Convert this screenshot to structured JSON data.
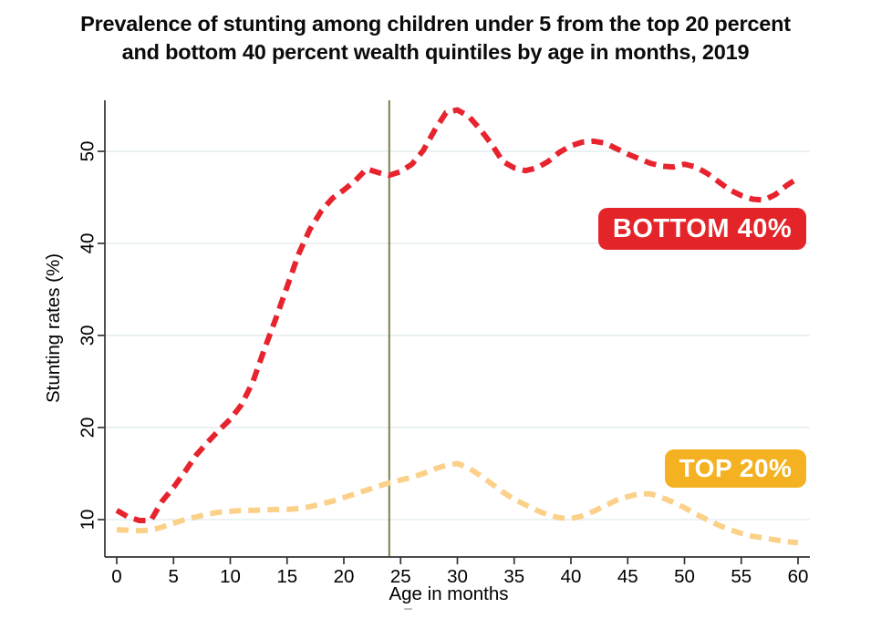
{
  "page": {
    "title_lines": [
      "Prevalence of stunting among children under 5 from the top 20 percent",
      "and bottom 40 percent wealth quintiles by age in months, 2019"
    ]
  },
  "chart_data": {
    "type": "line",
    "title": "Prevalence of stunting among children under 5 from the top 20 percent and bottom 40 percent wealth quintiles by age in months, 2019",
    "xlabel": "Age in months",
    "ylabel": "Stunting rates (%)",
    "xlim": [
      0,
      60
    ],
    "ylim": [
      6,
      56
    ],
    "x_ticks": [
      0,
      5,
      10,
      15,
      20,
      25,
      30,
      35,
      40,
      45,
      50,
      55,
      60
    ],
    "y_ticks": [
      10,
      20,
      30,
      40,
      50
    ],
    "y_tick_rotation_deg": 90,
    "grid": "horizontal gridlines at labeled y ticks",
    "legend_position": "direct badge labels on plot",
    "reference_line_x": 24,
    "line_style": "dashed",
    "x": [
      0,
      1,
      2,
      3,
      4,
      5,
      6,
      7,
      8,
      9,
      10,
      11,
      12,
      13,
      14,
      15,
      16,
      17,
      18,
      19,
      20,
      21,
      22,
      23,
      24,
      25,
      26,
      27,
      28,
      29,
      30,
      31,
      32,
      33,
      34,
      35,
      36,
      37,
      38,
      39,
      40,
      41,
      42,
      43,
      44,
      45,
      46,
      47,
      48,
      49,
      50,
      51,
      52,
      53,
      54,
      55,
      56,
      57,
      58,
      59,
      60
    ],
    "series": [
      {
        "name": "Bottom 40% wealth quintiles",
        "badge": {
          "label": "BOTTOM 40%",
          "bg": "#e32529",
          "text_color": "#ffffff",
          "anchor_months": 51.5,
          "anchor_rate": 41.5
        },
        "line_color": "#e7232e",
        "values": [
          11.0,
          10.3,
          9.9,
          9.9,
          12.0,
          13.5,
          15.2,
          17.0,
          18.4,
          19.7,
          20.9,
          22.5,
          25.0,
          28.5,
          31.8,
          35.3,
          38.8,
          41.5,
          43.5,
          44.9,
          45.8,
          46.8,
          48.1,
          47.7,
          47.4,
          47.8,
          48.6,
          50.1,
          52.3,
          54.2,
          54.5,
          53.8,
          52.4,
          50.8,
          48.9,
          48.2,
          47.9,
          48.2,
          48.9,
          49.9,
          50.6,
          51.0,
          51.1,
          50.9,
          50.3,
          49.7,
          49.2,
          48.7,
          48.4,
          48.3,
          48.6,
          48.3,
          47.6,
          46.7,
          45.8,
          45.2,
          44.8,
          44.7,
          45.3,
          46.3,
          47.1
        ]
      },
      {
        "name": "Top 20% wealth quintile",
        "badge": {
          "label": "TOP 20%",
          "bg": "#f4b223",
          "text_color": "#ffffff",
          "anchor_months": 54.5,
          "anchor_rate": 15.6
        },
        "line_color": "#fbd189",
        "values": [
          8.9,
          8.85,
          8.8,
          8.85,
          9.2,
          9.6,
          10.0,
          10.3,
          10.6,
          10.8,
          10.9,
          11.0,
          11.0,
          11.05,
          11.1,
          11.1,
          11.2,
          11.4,
          11.7,
          12.0,
          12.4,
          12.8,
          13.2,
          13.6,
          14.0,
          14.3,
          14.6,
          15.0,
          15.5,
          15.9,
          16.1,
          15.6,
          14.8,
          13.9,
          13.0,
          12.2,
          11.6,
          11.0,
          10.5,
          10.2,
          10.1,
          10.4,
          10.9,
          11.5,
          12.1,
          12.5,
          12.8,
          12.8,
          12.4,
          11.9,
          11.3,
          10.6,
          10.0,
          9.4,
          8.9,
          8.5,
          8.2,
          8.0,
          7.8,
          7.6,
          7.5
        ]
      }
    ],
    "colors": {
      "reference_line": "#7c8045",
      "gridline": "#e4eef1",
      "axis": "#333333",
      "tick_label": "#000000"
    }
  }
}
